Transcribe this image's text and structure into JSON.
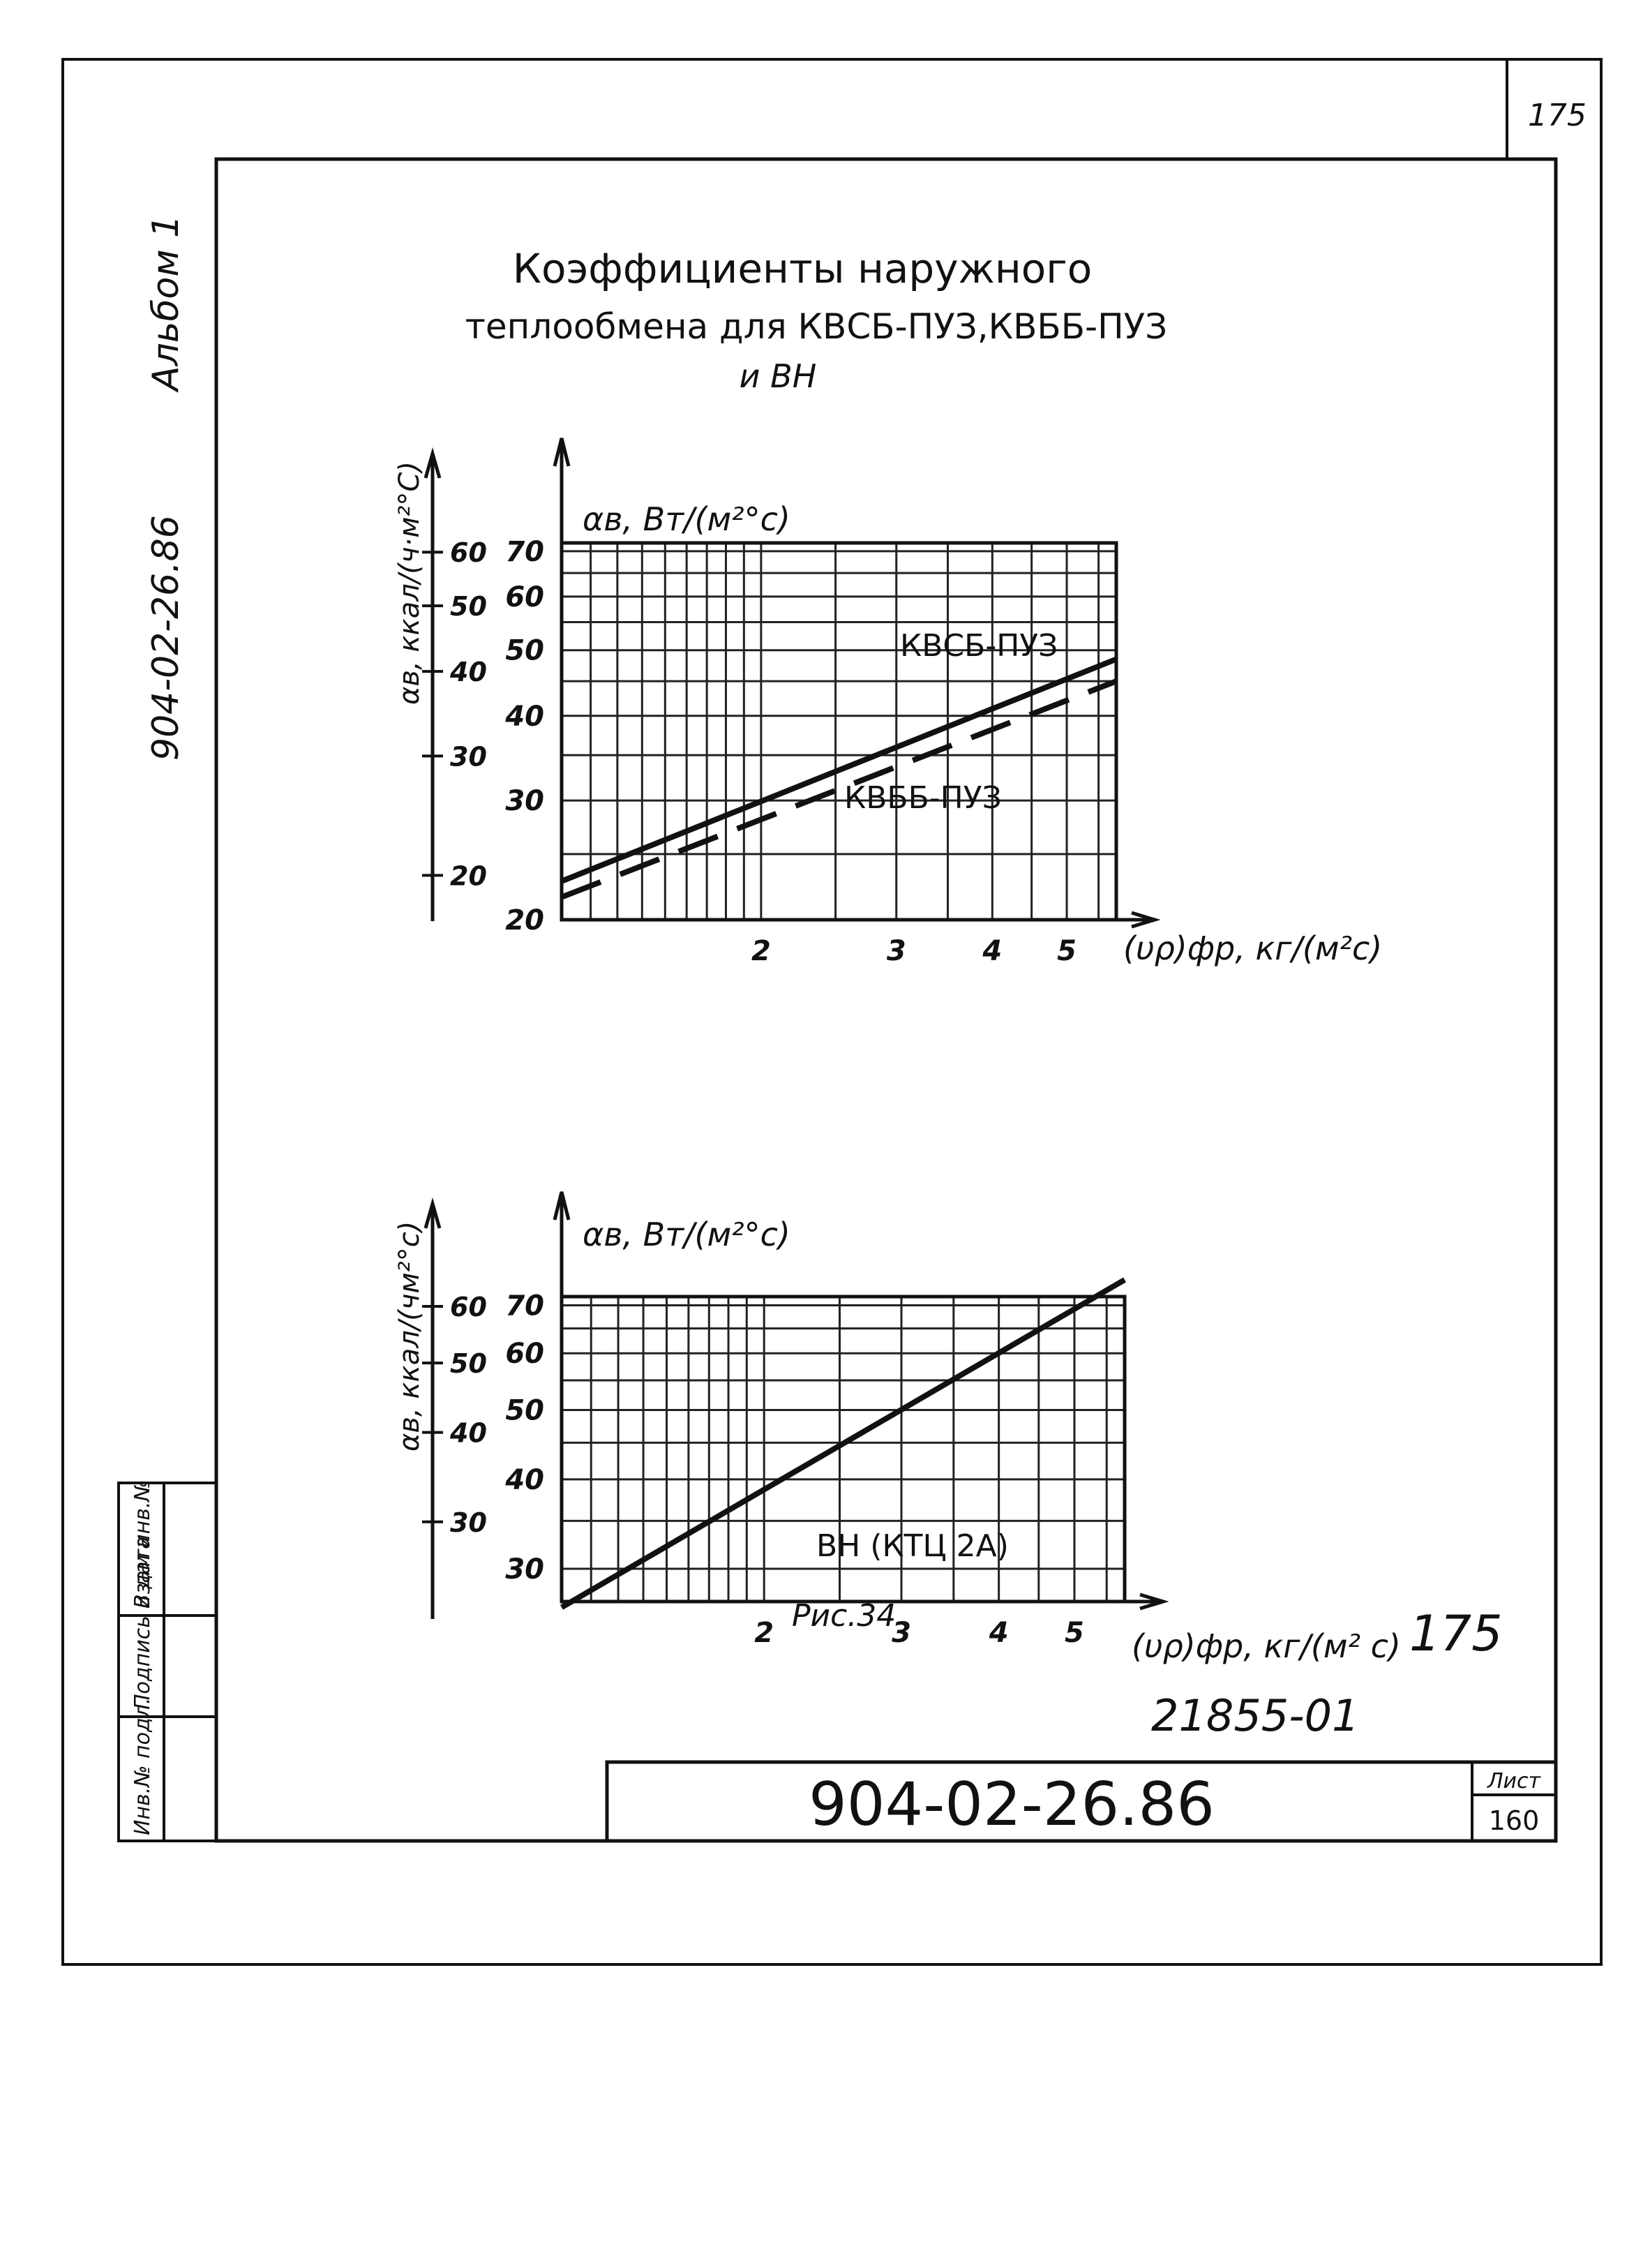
{
  "sheet": {
    "corner_number": "175",
    "album": "Альбом 1",
    "side_code": "904-02-26.86",
    "title_line1": "Коэффициенты наружного",
    "title_line2": "теплообмена для КВСБ-ПУЗ,КВББ-ПУЗ",
    "title_line3": "и ВН",
    "fig_caption": "Рис.34",
    "hand_number": "175",
    "inventory_code": "21855-01",
    "drawing_code": "904-02-26.86",
    "list_label": "Лист",
    "list_number": "160",
    "stamp_cells": [
      "Взам инв.№",
      "Подпись и дата",
      "Инв.№ подл."
    ]
  },
  "chart_data": [
    {
      "type": "line",
      "x_scale": "log",
      "y_scale": "log",
      "ylabel": "αв, Вт/(м²°с)",
      "ylabel_secondary": "αв, ккал/(ч·м²°С)",
      "xlabel": "(υρ)фр, кг/(м²с)",
      "xlim": [
        1.1,
        5.8
      ],
      "ylim": [
        20,
        72
      ],
      "x_ticks": [
        "2",
        "3",
        "4",
        "5"
      ],
      "y_ticks": [
        "20",
        "30",
        "40",
        "50",
        "60",
        "70"
      ],
      "y2_ticks": [
        "20",
        "30",
        "40",
        "50",
        "60"
      ],
      "series": [
        {
          "name": "КВСБ-ПУЗ",
          "style": "solid",
          "x": [
            1.1,
            5.8
          ],
          "y": [
            22.8,
            48.5
          ]
        },
        {
          "name": "КВББ-ПУЗ",
          "style": "dashed",
          "x": [
            1.1,
            5.8
          ],
          "y": [
            21.6,
            45.0
          ]
        }
      ]
    },
    {
      "type": "line",
      "x_scale": "log",
      "y_scale": "log",
      "ylabel": "αв, Вт/(м²°с)",
      "ylabel_secondary": "αв, ккал/(чм²°с)",
      "xlabel": "(υρ)фр, кг/(м² с)",
      "xlim": [
        1.1,
        5.8
      ],
      "ylim": [
        27,
        72
      ],
      "x_ticks": [
        "2",
        "3",
        "4",
        "5"
      ],
      "y_ticks": [
        "30",
        "40",
        "50",
        "60",
        "70"
      ],
      "y2_ticks": [
        "30",
        "40",
        "50",
        "60"
      ],
      "series": [
        {
          "name": "ВН (КТЦ 2А)",
          "style": "solid",
          "x": [
            1.1,
            5.8
          ],
          "y": [
            26.5,
            76.0
          ]
        }
      ]
    }
  ]
}
